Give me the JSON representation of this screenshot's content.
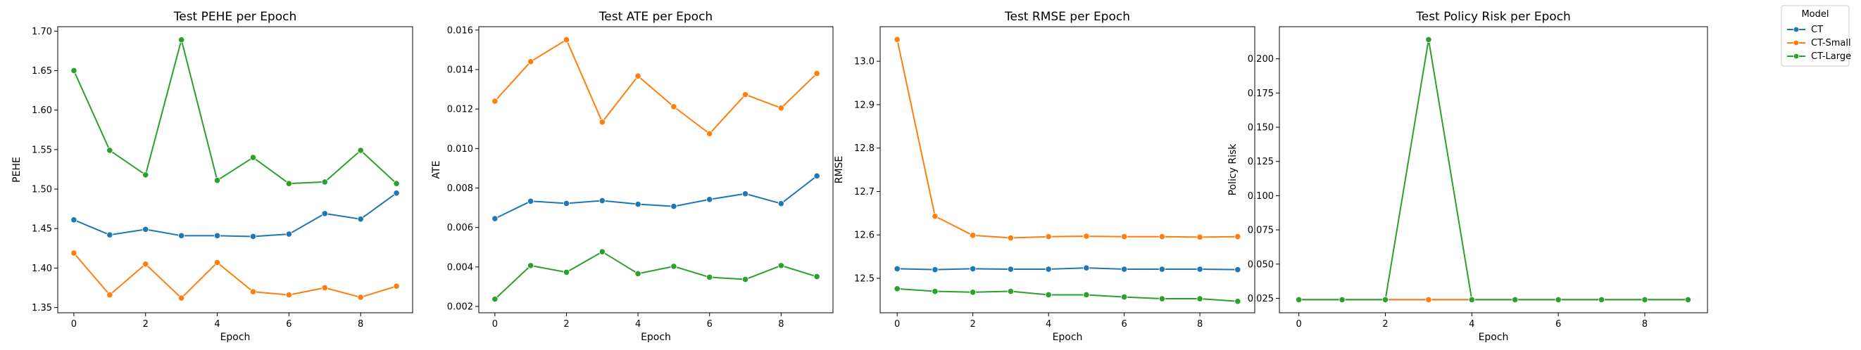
{
  "legend": {
    "title": "Model",
    "entries": [
      {
        "name": "CT",
        "color": "#1f77b4"
      },
      {
        "name": "CT-Small",
        "color": "#ff7f0e"
      },
      {
        "name": "CT-Large",
        "color": "#2ca02c"
      }
    ]
  },
  "chart_data": [
    {
      "type": "line",
      "title": "Test PEHE per Epoch",
      "xlabel": "Epoch",
      "ylabel": "PEHE",
      "x": [
        0,
        1,
        2,
        3,
        4,
        5,
        6,
        7,
        8,
        9
      ],
      "xticks": [
        "0",
        "2",
        "4",
        "6",
        "8"
      ],
      "xtick_values": [
        0,
        2,
        4,
        6,
        8
      ],
      "yticks": [
        "1.35",
        "1.40",
        "1.45",
        "1.50",
        "1.55",
        "1.60",
        "1.65",
        "1.70"
      ],
      "ytick_values": [
        1.35,
        1.4,
        1.45,
        1.5,
        1.55,
        1.6,
        1.65,
        1.7
      ],
      "xlim": [
        -0.45,
        9.45
      ],
      "ylim": [
        1.3434,
        1.7056
      ],
      "grid": false,
      "series": [
        {
          "name": "CT",
          "color": "#1f77b4",
          "values": [
            1.461,
            1.442,
            1.449,
            1.441,
            1.441,
            1.44,
            1.443,
            1.469,
            1.462,
            1.495
          ]
        },
        {
          "name": "CT-Small",
          "color": "#ff7f0e",
          "values": [
            1.419,
            1.366,
            1.405,
            1.362,
            1.407,
            1.37,
            1.366,
            1.375,
            1.363,
            1.377
          ]
        },
        {
          "name": "CT-Large",
          "color": "#2ca02c",
          "values": [
            1.65,
            1.549,
            1.518,
            1.689,
            1.511,
            1.54,
            1.507,
            1.509,
            1.549,
            1.507
          ]
        }
      ]
    },
    {
      "type": "line",
      "title": "Test ATE per Epoch",
      "xlabel": "Epoch",
      "ylabel": "ATE",
      "x": [
        0,
        1,
        2,
        3,
        4,
        5,
        6,
        7,
        8,
        9
      ],
      "xticks": [
        "0",
        "2",
        "4",
        "6",
        "8"
      ],
      "xtick_values": [
        0,
        2,
        4,
        6,
        8
      ],
      "yticks": [
        "0.002",
        "0.004",
        "0.006",
        "0.008",
        "0.010",
        "0.012",
        "0.014",
        "0.016"
      ],
      "ytick_values": [
        0.002,
        0.004,
        0.006,
        0.008,
        0.01,
        0.012,
        0.014,
        0.016
      ],
      "xlim": [
        -0.45,
        9.45
      ],
      "ylim": [
        0.00168,
        0.01617
      ],
      "grid": false,
      "series": [
        {
          "name": "CT",
          "color": "#1f77b4",
          "values": [
            0.00645,
            0.00733,
            0.00722,
            0.00736,
            0.00718,
            0.00707,
            0.00742,
            0.00771,
            0.00721,
            0.00861
          ]
        },
        {
          "name": "CT-Small",
          "color": "#ff7f0e",
          "values": [
            0.0124,
            0.0144,
            0.01551,
            0.01134,
            0.01367,
            0.01212,
            0.01075,
            0.01273,
            0.01205,
            0.0138
          ]
        },
        {
          "name": "CT-Large",
          "color": "#2ca02c",
          "values": [
            0.00237,
            0.00407,
            0.00373,
            0.00477,
            0.00366,
            0.00403,
            0.00348,
            0.00337,
            0.00407,
            0.00351
          ]
        }
      ]
    },
    {
      "type": "line",
      "title": "Test RMSE per Epoch",
      "xlabel": "Epoch",
      "ylabel": "RMSE",
      "x": [
        0,
        1,
        2,
        3,
        4,
        5,
        6,
        7,
        8,
        9
      ],
      "xticks": [
        "0",
        "2",
        "4",
        "6",
        "8"
      ],
      "xtick_values": [
        0,
        2,
        4,
        6,
        8
      ],
      "yticks": [
        "12.5",
        "12.6",
        "12.7",
        "12.8",
        "12.9",
        "13.0"
      ],
      "ytick_values": [
        12.5,
        12.6,
        12.7,
        12.8,
        12.9,
        13.0
      ],
      "xlim": [
        -0.45,
        9.45
      ],
      "ylim": [
        12.4207,
        13.0795
      ],
      "grid": false,
      "series": [
        {
          "name": "CT",
          "color": "#1f77b4",
          "values": [
            12.522,
            12.52,
            12.522,
            12.521,
            12.521,
            12.524,
            12.521,
            12.521,
            12.521,
            12.52
          ]
        },
        {
          "name": "CT-Small",
          "color": "#ff7f0e",
          "values": [
            13.05,
            12.643,
            12.599,
            12.593,
            12.596,
            12.597,
            12.596,
            12.596,
            12.595,
            12.596
          ]
        },
        {
          "name": "CT-Large",
          "color": "#2ca02c",
          "values": [
            12.476,
            12.47,
            12.468,
            12.47,
            12.462,
            12.462,
            12.457,
            12.453,
            12.453,
            12.447
          ]
        }
      ]
    },
    {
      "type": "line",
      "title": "Test Policy Risk per Epoch",
      "xlabel": "Epoch",
      "ylabel": "Policy Risk",
      "x": [
        0,
        1,
        2,
        3,
        4,
        5,
        6,
        7,
        8,
        9
      ],
      "xticks": [
        "0",
        "2",
        "4",
        "6",
        "8"
      ],
      "xtick_values": [
        0,
        2,
        4,
        6,
        8
      ],
      "yticks": [
        "0.025",
        "0.050",
        "0.075",
        "0.100",
        "0.125",
        "0.150",
        "0.175",
        "0.200"
      ],
      "ytick_values": [
        0.025,
        0.05,
        0.075,
        0.1,
        0.125,
        0.15,
        0.175,
        0.2
      ],
      "xlim": [
        -0.45,
        9.45
      ],
      "ylim": [
        0.01445,
        0.22343
      ],
      "grid": false,
      "series": [
        {
          "name": "CT",
          "color": "#1f77b4",
          "values": [
            0.024,
            0.024,
            0.024,
            0.024,
            0.024,
            0.024,
            0.024,
            0.024,
            0.024,
            0.024
          ]
        },
        {
          "name": "CT-Small",
          "color": "#ff7f0e",
          "values": [
            0.024,
            0.024,
            0.024,
            0.024,
            0.024,
            0.024,
            0.024,
            0.024,
            0.024,
            0.024
          ]
        },
        {
          "name": "CT-Large",
          "color": "#2ca02c",
          "values": [
            0.024,
            0.024,
            0.024,
            0.214,
            0.024,
            0.024,
            0.024,
            0.024,
            0.024,
            0.024
          ]
        }
      ]
    }
  ]
}
